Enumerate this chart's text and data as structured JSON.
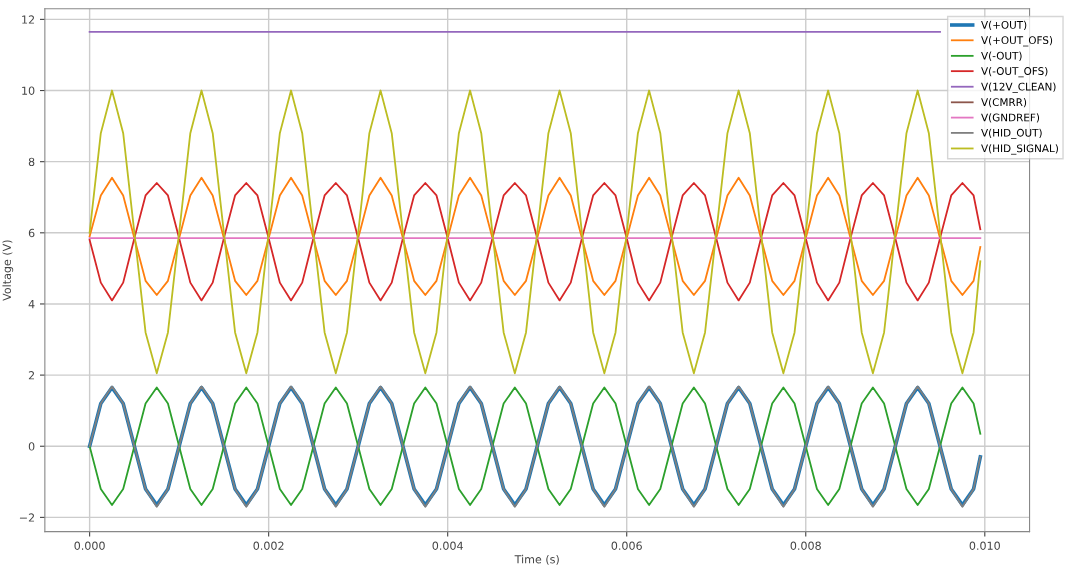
{
  "chart_data": {
    "type": "line",
    "xlabel": "Time (s)",
    "ylabel": "Voltage (V)",
    "x": [
      0,
      0.000125,
      0.00025,
      0.000375,
      0.0005,
      0.000625,
      0.00075,
      0.000875,
      0.001,
      0.001125,
      0.00125,
      0.001375,
      0.0015,
      0.001625,
      0.00175,
      0.001875,
      0.002,
      0.002125,
      0.00225,
      0.002375,
      0.0025,
      0.002625,
      0.00275,
      0.002875,
      0.003,
      0.003125,
      0.00325,
      0.003375,
      0.0035,
      0.003625,
      0.00375,
      0.003875,
      0.004,
      0.004125,
      0.00425,
      0.004375,
      0.0045,
      0.004625,
      0.00475,
      0.004875,
      0.005,
      0.005125,
      0.00525,
      0.005375,
      0.0055,
      0.005625,
      0.00575,
      0.005875,
      0.006,
      0.006125,
      0.00625,
      0.006375,
      0.0065,
      0.006625,
      0.00675,
      0.006875,
      0.007,
      0.007125,
      0.00725,
      0.007375,
      0.0075,
      0.007625,
      0.00775,
      0.007875,
      0.008,
      0.008125,
      0.00825,
      0.008375,
      0.0085,
      0.008625,
      0.00875,
      0.008875,
      0.009,
      0.009125,
      0.00925,
      0.009375,
      0.0095,
      0.009625,
      0.00975,
      0.009875,
      0.00995
    ],
    "series": [
      {
        "name": "V(+OUT)",
        "color": "#1f77b4",
        "values": [
          0,
          1.2,
          1.65,
          1.2,
          0,
          -1.2,
          -1.65,
          -1.2,
          0,
          1.2,
          1.65,
          1.2,
          0,
          -1.2,
          -1.65,
          -1.2,
          0,
          1.2,
          1.65,
          1.2,
          0,
          -1.2,
          -1.65,
          -1.2,
          0,
          1.2,
          1.65,
          1.2,
          0,
          -1.2,
          -1.65,
          -1.2,
          0,
          1.2,
          1.65,
          1.2,
          0,
          -1.2,
          -1.65,
          -1.2,
          0,
          1.2,
          1.65,
          1.2,
          0,
          -1.2,
          -1.65,
          -1.2,
          0,
          1.2,
          1.65,
          1.2,
          0,
          -1.2,
          -1.65,
          -1.2,
          0,
          1.2,
          1.65,
          1.2,
          0,
          -1.2,
          -1.65,
          -1.2,
          0,
          1.2,
          1.65,
          1.2,
          0,
          -1.2,
          -1.65,
          -1.2,
          0,
          1.2,
          1.65,
          1.2,
          0,
          -1.2,
          -1.65,
          -1.2,
          -0.3
        ]
      },
      {
        "name": "V(+OUT_OFS)",
        "color": "#ff7f0e",
        "values": [
          5.9,
          7.05,
          7.55,
          7.05,
          5.85,
          4.65,
          4.25,
          4.65,
          5.85,
          7.05,
          7.55,
          7.05,
          5.85,
          4.65,
          4.25,
          4.65,
          5.85,
          7.05,
          7.55,
          7.05,
          5.85,
          4.65,
          4.25,
          4.65,
          5.85,
          7.05,
          7.55,
          7.05,
          5.85,
          4.65,
          4.25,
          4.65,
          5.85,
          7.05,
          7.55,
          7.05,
          5.85,
          4.65,
          4.25,
          4.65,
          5.85,
          7.05,
          7.55,
          7.05,
          5.85,
          4.65,
          4.25,
          4.65,
          5.85,
          7.05,
          7.55,
          7.05,
          5.85,
          4.65,
          4.25,
          4.65,
          5.85,
          7.05,
          7.55,
          7.05,
          5.85,
          4.65,
          4.25,
          4.65,
          5.85,
          7.05,
          7.55,
          7.05,
          5.85,
          4.65,
          4.25,
          4.65,
          5.85,
          7.05,
          7.55,
          7.05,
          5.85,
          4.65,
          4.25,
          4.65,
          5.6
        ]
      },
      {
        "name": "V(-OUT)",
        "color": "#2ca02c",
        "values": [
          0,
          -1.2,
          -1.65,
          -1.2,
          0,
          1.2,
          1.65,
          1.2,
          0,
          -1.2,
          -1.65,
          -1.2,
          0,
          1.2,
          1.65,
          1.2,
          0,
          -1.2,
          -1.65,
          -1.2,
          0,
          1.2,
          1.65,
          1.2,
          0,
          -1.2,
          -1.65,
          -1.2,
          0,
          1.2,
          1.65,
          1.2,
          0,
          -1.2,
          -1.65,
          -1.2,
          0,
          1.2,
          1.65,
          1.2,
          0,
          -1.2,
          -1.65,
          -1.2,
          0,
          1.2,
          1.65,
          1.2,
          0,
          -1.2,
          -1.65,
          -1.2,
          0,
          1.2,
          1.65,
          1.2,
          0,
          -1.2,
          -1.65,
          -1.2,
          0,
          1.2,
          1.65,
          1.2,
          0,
          -1.2,
          -1.65,
          -1.2,
          0,
          1.2,
          1.65,
          1.2,
          0,
          -1.2,
          -1.65,
          -1.2,
          0,
          1.2,
          1.65,
          1.2,
          0.35
        ]
      },
      {
        "name": "V(-OUT_OFS)",
        "color": "#d62728",
        "values": [
          5.8,
          4.6,
          4.1,
          4.6,
          5.85,
          7.05,
          7.4,
          7.05,
          5.85,
          4.6,
          4.1,
          4.6,
          5.85,
          7.05,
          7.4,
          7.05,
          5.85,
          4.6,
          4.1,
          4.6,
          5.85,
          7.05,
          7.4,
          7.05,
          5.85,
          4.6,
          4.1,
          4.6,
          5.85,
          7.05,
          7.4,
          7.05,
          5.85,
          4.6,
          4.1,
          4.6,
          5.85,
          7.05,
          7.4,
          7.05,
          5.85,
          4.6,
          4.1,
          4.6,
          5.85,
          7.05,
          7.4,
          7.05,
          5.85,
          4.6,
          4.1,
          4.6,
          5.85,
          7.05,
          7.4,
          7.05,
          5.85,
          4.6,
          4.1,
          4.6,
          5.85,
          7.05,
          7.4,
          7.05,
          5.85,
          4.6,
          4.1,
          4.6,
          5.85,
          7.05,
          7.4,
          7.05,
          5.85,
          4.6,
          4.1,
          4.6,
          5.85,
          7.05,
          7.4,
          7.05,
          6.1
        ]
      },
      {
        "name": "V(12V_CLEAN)",
        "color": "#9467bd",
        "values": [
          11.65,
          11.65,
          11.65,
          11.65,
          11.65,
          11.65,
          11.65,
          11.65,
          11.65,
          11.65,
          11.65,
          11.65,
          11.65,
          11.65,
          11.65,
          11.65,
          11.65,
          11.65,
          11.65,
          11.65,
          11.65,
          11.65,
          11.65,
          11.65,
          11.65,
          11.65,
          11.65,
          11.65,
          11.65,
          11.65,
          11.65,
          11.65,
          11.65,
          11.65,
          11.65,
          11.65,
          11.65,
          11.65,
          11.65,
          11.65,
          11.65,
          11.65,
          11.65,
          11.65,
          11.65,
          11.65,
          11.65,
          11.65,
          11.65,
          11.65,
          11.65,
          11.65,
          11.65,
          11.65,
          11.65,
          11.65,
          11.65,
          11.65,
          11.65,
          11.65,
          11.65,
          11.65,
          11.65,
          11.65,
          11.65,
          11.65,
          11.65,
          11.65,
          11.65,
          11.65,
          11.65,
          11.65,
          11.65,
          11.65,
          11.65,
          11.65,
          11.65,
          null,
          null,
          null,
          null
        ]
      },
      {
        "name": "V(CMRR)",
        "color": "#8c564b",
        "values": [
          null,
          null,
          null,
          null,
          null,
          null,
          null,
          null,
          null,
          null,
          null,
          null,
          null,
          null,
          null,
          null,
          null,
          null,
          null,
          null,
          null,
          null,
          null,
          null,
          null,
          null,
          null,
          null,
          null,
          null,
          null,
          null,
          null,
          null,
          null,
          null,
          null,
          null,
          null,
          null,
          null,
          null,
          null,
          null,
          null,
          null,
          null,
          null,
          null,
          null,
          null,
          null,
          null,
          null,
          null,
          null,
          null,
          null,
          null,
          null,
          null,
          null,
          null,
          null,
          null,
          null,
          null,
          null,
          null,
          null,
          null,
          null,
          null,
          null,
          null,
          null,
          null,
          null,
          null,
          null,
          null
        ]
      },
      {
        "name": "V(GNDREF)",
        "color": "#e377c2",
        "values": [
          5.85,
          5.85,
          5.85,
          5.85,
          5.85,
          5.85,
          5.85,
          5.85,
          5.85,
          5.85,
          5.85,
          5.85,
          5.85,
          5.85,
          5.85,
          5.85,
          5.85,
          5.85,
          5.85,
          5.85,
          5.85,
          5.85,
          5.85,
          5.85,
          5.85,
          5.85,
          5.85,
          5.85,
          5.85,
          5.85,
          5.85,
          5.85,
          5.85,
          5.85,
          5.85,
          5.85,
          5.85,
          5.85,
          5.85,
          5.85,
          5.85,
          5.85,
          5.85,
          5.85,
          5.85,
          5.85,
          5.85,
          5.85,
          5.85,
          5.85,
          5.85,
          5.85,
          5.85,
          5.85,
          5.85,
          5.85,
          5.85,
          5.85,
          5.85,
          5.85,
          5.85,
          5.85,
          5.85,
          5.85,
          5.85,
          5.85,
          5.85,
          5.85,
          5.85,
          5.85,
          5.85,
          5.85,
          5.85,
          5.85,
          5.85,
          5.85,
          5.85,
          5.85,
          5.85,
          5.85,
          5.85
        ]
      },
      {
        "name": "V(HID_OUT)",
        "color": "#7f7f7f",
        "values": [
          0,
          1.2,
          1.68,
          1.2,
          0,
          -1.2,
          -1.7,
          -1.2,
          0,
          1.2,
          1.68,
          1.2,
          0,
          -1.2,
          -1.7,
          -1.2,
          0,
          1.2,
          1.68,
          1.2,
          0,
          -1.2,
          -1.7,
          -1.2,
          0,
          1.2,
          1.68,
          1.2,
          0,
          -1.2,
          -1.7,
          -1.2,
          0,
          1.2,
          1.68,
          1.2,
          0,
          -1.2,
          -1.7,
          -1.2,
          0,
          1.2,
          1.68,
          1.2,
          0,
          -1.2,
          -1.7,
          -1.2,
          0,
          1.2,
          1.68,
          1.2,
          0,
          -1.2,
          -1.7,
          -1.2,
          0,
          1.2,
          1.68,
          1.2,
          0,
          -1.2,
          -1.7,
          -1.2,
          0,
          1.2,
          1.68,
          1.2,
          0,
          -1.2,
          -1.7,
          -1.2,
          0,
          1.2,
          1.68,
          1.2,
          0,
          -1.2,
          -1.7,
          -1.2,
          -0.3
        ]
      },
      {
        "name": "V(HID_SIGNAL)",
        "color": "#bcbd22",
        "values": [
          6,
          8.8,
          10,
          8.8,
          6,
          3.2,
          2.05,
          3.2,
          6,
          8.8,
          10,
          8.8,
          6,
          3.2,
          2.05,
          3.2,
          6,
          8.8,
          10,
          8.8,
          6,
          3.2,
          2.05,
          3.2,
          6,
          8.8,
          10,
          8.8,
          6,
          3.2,
          2.05,
          3.2,
          6,
          8.8,
          10,
          8.8,
          6,
          3.2,
          2.05,
          3.2,
          6,
          8.8,
          10,
          8.8,
          6,
          3.2,
          2.05,
          3.2,
          6,
          8.8,
          10,
          8.8,
          6,
          3.2,
          2.05,
          3.2,
          6,
          8.8,
          10,
          8.8,
          6,
          3.2,
          2.05,
          3.2,
          6,
          8.8,
          10,
          8.8,
          6,
          3.2,
          2.05,
          3.2,
          6,
          8.8,
          10,
          8.8,
          6,
          3.2,
          2.05,
          3.2,
          5.2
        ]
      }
    ],
    "xlim": [
      -0.0005,
      0.0105
    ],
    "ylim": [
      -2.4,
      12.3
    ],
    "xticks": [
      {
        "value": 0,
        "label": "0.000"
      },
      {
        "value": 0.002,
        "label": "0.002"
      },
      {
        "value": 0.004,
        "label": "0.004"
      },
      {
        "value": 0.006,
        "label": "0.006"
      },
      {
        "value": 0.008,
        "label": "0.008"
      },
      {
        "value": 0.01,
        "label": "0.010"
      }
    ],
    "yticks": [
      {
        "value": -2,
        "label": "−2"
      },
      0,
      2,
      4,
      6,
      8,
      10,
      12
    ],
    "grid": true,
    "legend": "top right"
  }
}
